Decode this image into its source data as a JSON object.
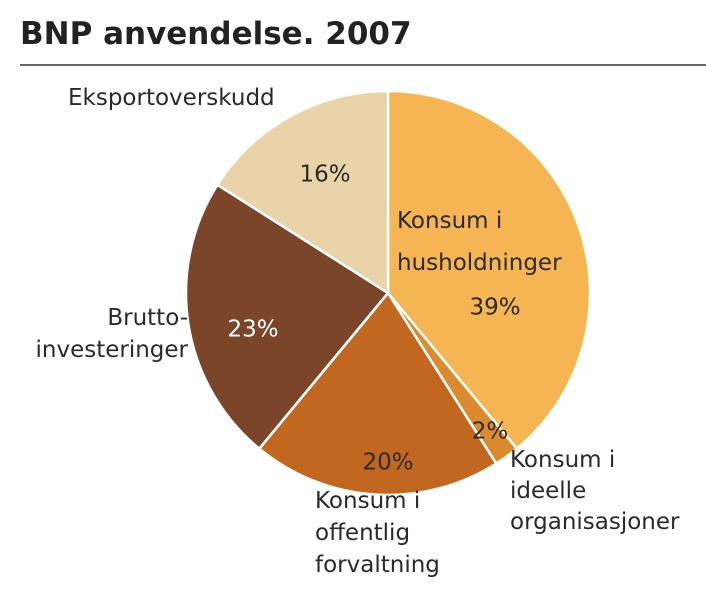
{
  "chart_data": {
    "type": "pie",
    "title": "BNP anvendelse. 2007",
    "categories": [
      "Konsum i\nhusholdninger",
      "Konsum i\nideelle\norganisasjoner",
      "Konsum i\noffentlig\nforvaltning",
      "Brutto-\ninvesteringer",
      "Eksportoverskudd"
    ],
    "values": [
      39,
      2,
      20,
      23,
      16
    ],
    "value_labels": [
      "39%",
      "2%",
      "20%",
      "23%",
      "16%"
    ],
    "colors": [
      "#f6b553",
      "#db8b2e",
      "#c2671f",
      "#7b452a",
      "#e9d3a9"
    ]
  }
}
